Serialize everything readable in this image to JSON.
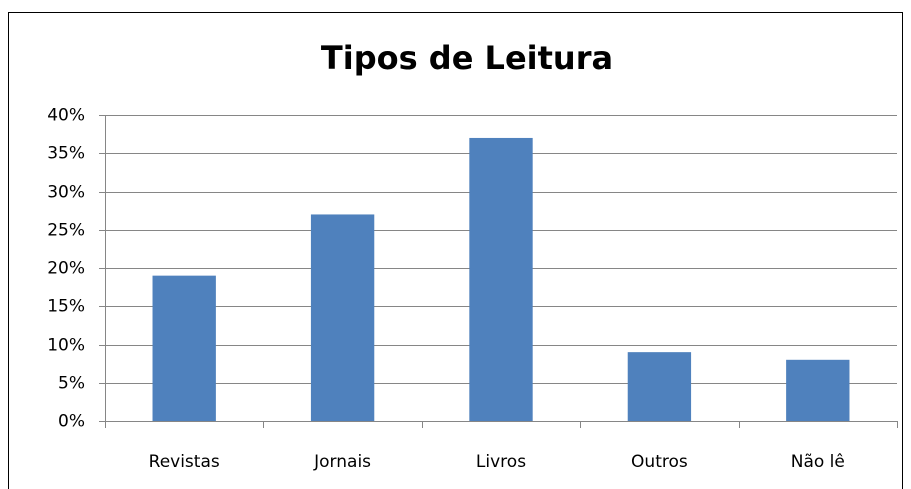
{
  "chart_data": {
    "type": "bar",
    "title": "Tipos de Leitura",
    "categories": [
      "Revistas",
      "Jornais",
      "Livros",
      "Outros",
      "Não lê"
    ],
    "values": [
      19,
      27,
      37,
      9,
      8
    ],
    "color": "#4f81bd",
    "ylim": [
      0,
      40
    ],
    "yticks": [
      {
        "value": 0,
        "label": "0%"
      },
      {
        "value": 5,
        "label": "5%"
      },
      {
        "value": 10,
        "label": "10%"
      },
      {
        "value": 15,
        "label": "15%"
      },
      {
        "value": 20,
        "label": "20%"
      },
      {
        "value": 25,
        "label": "25%"
      },
      {
        "value": 30,
        "label": "30%"
      },
      {
        "value": 35,
        "label": "35%"
      },
      {
        "value": 40,
        "label": "40%"
      }
    ],
    "grid": true
  }
}
